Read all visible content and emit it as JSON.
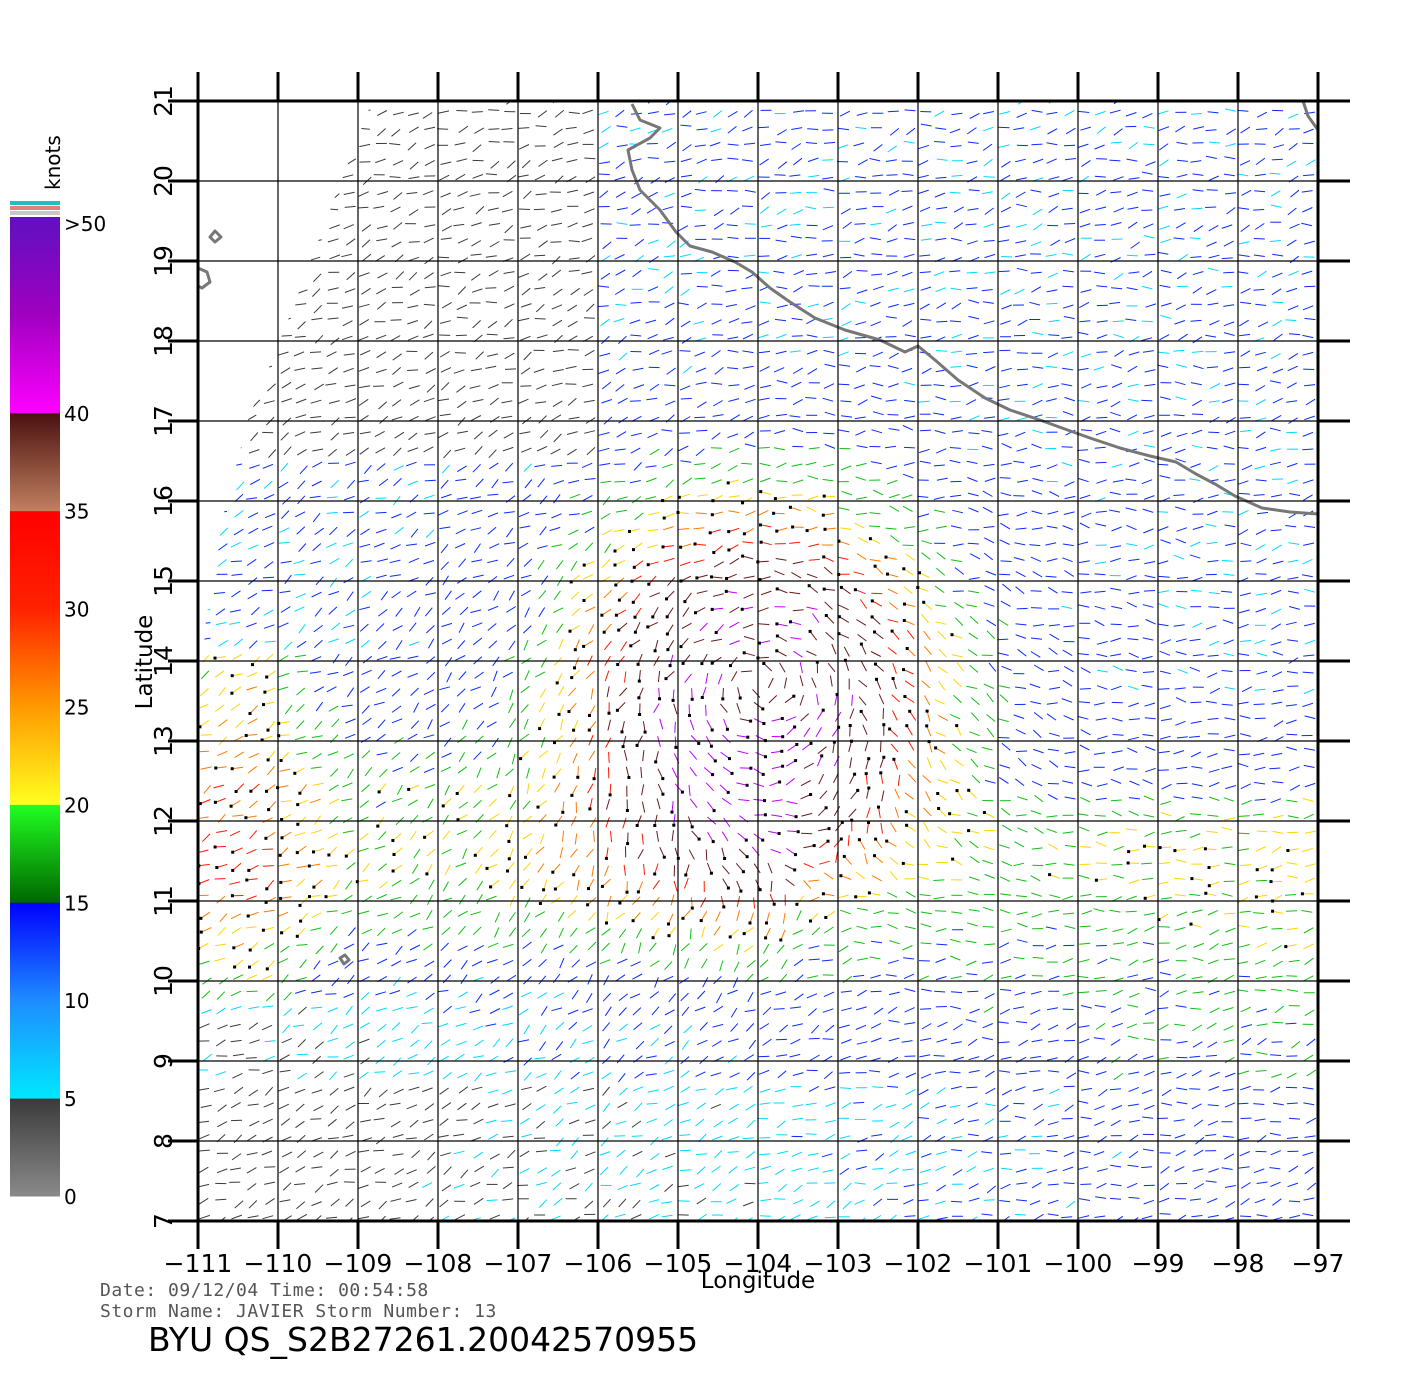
{
  "legend": {
    "unit_label": "knots",
    "bins": [
      {
        "label": "0",
        "from": "#8a8a8a",
        "to": "#3a3a3a"
      },
      {
        "label": "5",
        "from": "#00e8ff",
        "to": "#1e8cff"
      },
      {
        "label": "10",
        "from": "#1e8cff",
        "to": "#0000ff"
      },
      {
        "label": "15",
        "from": "#006600",
        "to": "#22ff22"
      },
      {
        "label": "20",
        "from": "#ffff20",
        "to": "#ff9900"
      },
      {
        "label": "25",
        "from": "#ff9900",
        "to": "#ff2200"
      },
      {
        "label": "30",
        "from": "#ff2200",
        "to": "#ff0000"
      },
      {
        "label": "35",
        "from": "#c08060",
        "to": "#4a1010"
      },
      {
        "label": "40",
        "from": "#ff00ff",
        "to": "#a000c0"
      },
      {
        "label": ">50",
        "from": "#a000c0",
        "to": "#6010c0"
      }
    ],
    "top_stripes": [
      "#20c0c0",
      "#e08080",
      "#c8c8c8"
    ]
  },
  "axes": {
    "x_title": "Longitude",
    "y_title": "Latitude",
    "lon_ticks": [
      "-111",
      "-110",
      "-109",
      "-108",
      "-107",
      "-106",
      "-105",
      "-104",
      "-103",
      "-102",
      "-101",
      "-100",
      "-99",
      "-98",
      "-97"
    ],
    "lat_ticks": [
      "7",
      "8",
      "9",
      "10",
      "11",
      "12",
      "13",
      "14",
      "15",
      "16",
      "17",
      "18",
      "19",
      "20",
      "21"
    ],
    "lon_range": [
      -111,
      -97
    ],
    "lat_range": [
      7,
      21
    ],
    "grid": true
  },
  "map_data": {
    "title": "",
    "region": "Eastern Pacific off southwestern Mexico",
    "storm_center": {
      "lon": -104,
      "lat": 13.7
    },
    "wind_colors": {
      "calm": "#3a3a3a",
      "light": "#00d8ff",
      "moderate": "#0a2aff",
      "fresh": "#10c010",
      "strong": "#ffd400",
      "gale": "#ff7a00",
      "severe": "#ff1a00",
      "storm": "#6a1a1a",
      "hurricane": "#c000ff"
    }
  },
  "info": {
    "date_line": "Date: 09/12/04   Time: 00:54:58",
    "storm_line": "Storm Name: JAVIER   Storm Number: 13",
    "product_id": "BYU QS_S2B27261.20042570955"
  }
}
